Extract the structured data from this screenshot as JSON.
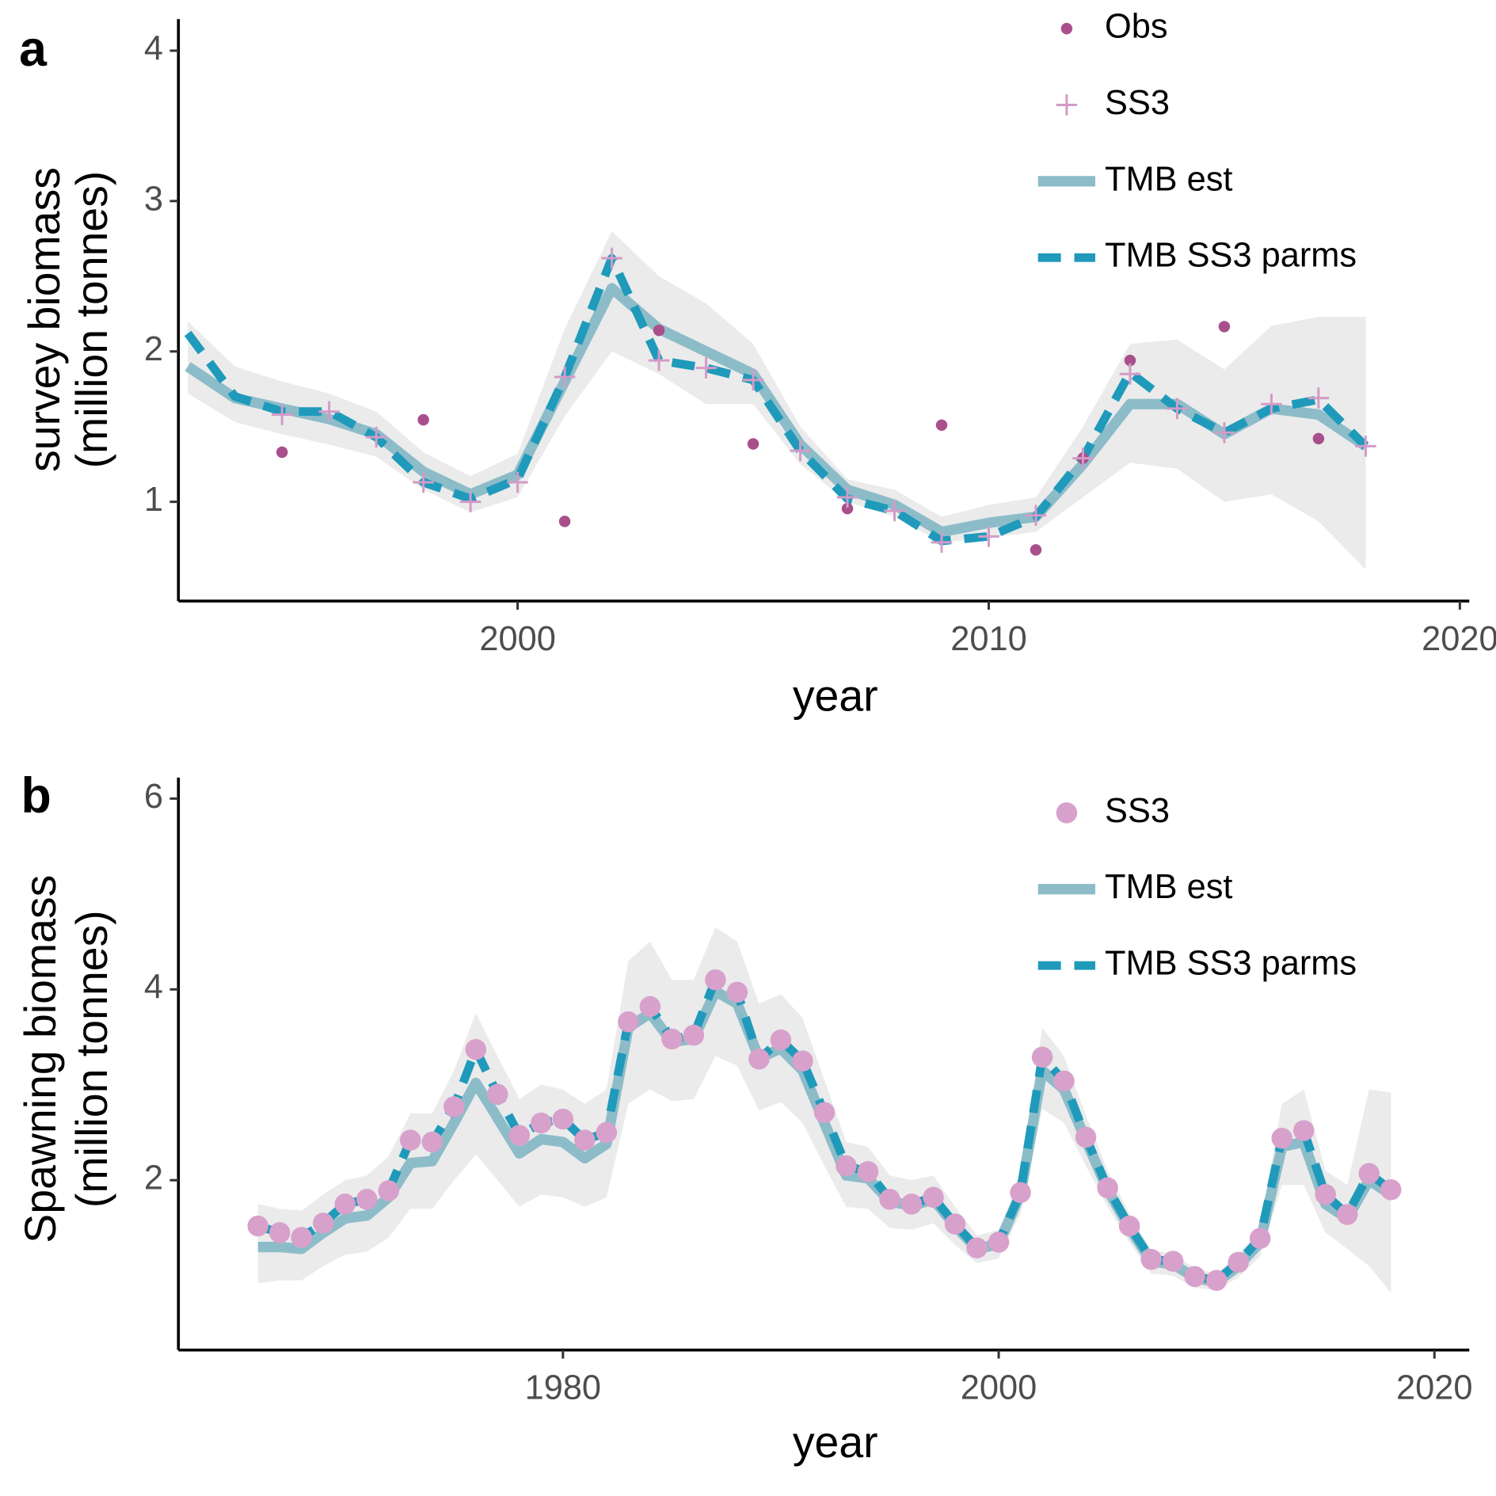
{
  "chart_data": [
    {
      "type": "line",
      "panel_label": "a",
      "x_label": "year",
      "y_label": [
        "survey biomass",
        "(million tonnes)"
      ],
      "xlim": [
        1992.8,
        2020.2
      ],
      "xticks": [
        2000,
        2010,
        2020
      ],
      "ylim": [
        0.34,
        4.21
      ],
      "yticks": [
        1,
        2,
        3,
        4
      ],
      "legend": "top-right",
      "band": {
        "color": "#ebebeb",
        "x": [
          1993,
          1994,
          1995,
          1996,
          1997,
          1998,
          1999,
          2000,
          2001,
          2002,
          2003,
          2004,
          2005,
          2006,
          2007,
          2008,
          2009,
          2010,
          2011,
          2012,
          2013,
          2014,
          2015,
          2016,
          2017,
          2018
        ],
        "lower": [
          1.72,
          1.53,
          1.45,
          1.38,
          1.3,
          1.08,
          0.93,
          1.03,
          1.57,
          2.0,
          1.85,
          1.65,
          1.65,
          1.25,
          1.0,
          0.9,
          0.73,
          0.76,
          0.8,
          1.03,
          1.26,
          1.22,
          1.0,
          1.05,
          0.87,
          0.55
        ],
        "upper": [
          2.2,
          1.9,
          1.8,
          1.72,
          1.6,
          1.33,
          1.17,
          1.32,
          2.15,
          2.8,
          2.5,
          2.32,
          2.05,
          1.5,
          1.15,
          1.08,
          0.9,
          0.98,
          1.03,
          1.5,
          2.05,
          2.08,
          1.88,
          2.17,
          2.23,
          2.23
        ]
      },
      "series": [
        {
          "name": "Obs",
          "style": "circle",
          "color": "#a94f8c",
          "x": [
            1995,
            1998,
            2001,
            2003,
            2005,
            2007,
            2009,
            2011,
            2012,
            2013,
            2015,
            2017
          ],
          "values": [
            1.33,
            1.545,
            0.87,
            2.14,
            1.385,
            0.955,
            1.51,
            0.68,
            1.29,
            1.94,
            2.165,
            1.42
          ]
        },
        {
          "name": "SS3",
          "style": "plus",
          "color": "#d39bc7",
          "x": [
            1995,
            1996,
            1997,
            1998,
            1999,
            2000,
            2001,
            2002,
            2003,
            2004,
            2005,
            2006,
            2007,
            2008,
            2009,
            2010,
            2011,
            2012,
            2013,
            2014,
            2015,
            2016,
            2017,
            2018
          ],
          "values": [
            1.58,
            1.6,
            1.43,
            1.13,
            1.0,
            1.13,
            1.83,
            2.62,
            1.94,
            1.89,
            1.81,
            1.34,
            1.03,
            0.94,
            0.73,
            0.77,
            0.91,
            1.29,
            1.85,
            1.62,
            1.46,
            1.65,
            1.69,
            1.37
          ]
        },
        {
          "name": "TMB est",
          "style": "solid",
          "color": "#8dbcc9",
          "x": [
            1993,
            1994,
            1995,
            1996,
            1997,
            1998,
            1999,
            2000,
            2001,
            2002,
            2003,
            2004,
            2005,
            2006,
            2007,
            2008,
            2009,
            2010,
            2011,
            2012,
            2013,
            2014,
            2015,
            2016,
            2017,
            2018
          ],
          "values": [
            1.9,
            1.69,
            1.62,
            1.55,
            1.45,
            1.2,
            1.05,
            1.18,
            1.8,
            2.42,
            2.15,
            2.0,
            1.85,
            1.38,
            1.08,
            0.98,
            0.8,
            0.86,
            0.9,
            1.25,
            1.65,
            1.65,
            1.45,
            1.62,
            1.58,
            1.37
          ]
        },
        {
          "name": "TMB SS3 parms",
          "style": "dashed",
          "color": "#1f9abb",
          "x": [
            1993,
            1994,
            1995,
            1996,
            1997,
            1998,
            1999,
            2000,
            2001,
            2002,
            2003,
            2004,
            2005,
            2006,
            2007,
            2008,
            2009,
            2010,
            2011,
            2012,
            2013,
            2014,
            2015,
            2016,
            2017,
            2018
          ],
          "values": [
            2.12,
            1.7,
            1.6,
            1.6,
            1.43,
            1.13,
            1.02,
            1.15,
            1.83,
            2.62,
            1.94,
            1.89,
            1.81,
            1.34,
            1.02,
            0.94,
            0.74,
            0.77,
            0.9,
            1.29,
            1.86,
            1.62,
            1.46,
            1.62,
            1.68,
            1.37
          ]
        }
      ]
    },
    {
      "type": "line",
      "panel_label": "b",
      "x_label": "year",
      "y_label": [
        "Spawning biomass",
        "(million tonnes)"
      ],
      "xlim": [
        1962.35,
        2021.6
      ],
      "xticks": [
        1980,
        2000,
        2020
      ],
      "ylim": [
        0.22,
        6.22
      ],
      "yticks": [
        2,
        4,
        6
      ],
      "legend": "top-right",
      "band": {
        "color": "#ebebeb",
        "x": [
          1966,
          1967,
          1968,
          1969,
          1970,
          1971,
          1972,
          1973,
          1974,
          1975,
          1976,
          1977,
          1978,
          1979,
          1980,
          1981,
          1982,
          1983,
          1984,
          1985,
          1986,
          1987,
          1988,
          1989,
          1990,
          1991,
          1992,
          1993,
          1994,
          1995,
          1996,
          1997,
          1998,
          1999,
          2000,
          2001,
          2002,
          2003,
          2004,
          2005,
          2006,
          2007,
          2008,
          2009,
          2010,
          2011,
          2012,
          2013,
          2014,
          2015,
          2016,
          2017,
          2018
        ],
        "lower": [
          0.92,
          0.95,
          0.95,
          1.1,
          1.22,
          1.25,
          1.4,
          1.7,
          1.7,
          2.0,
          2.27,
          2.0,
          1.72,
          1.85,
          1.82,
          1.72,
          1.82,
          2.8,
          2.95,
          2.83,
          2.85,
          3.3,
          3.2,
          2.73,
          2.82,
          2.6,
          2.15,
          1.72,
          1.7,
          1.5,
          1.48,
          1.55,
          1.32,
          1.13,
          1.18,
          1.65,
          2.75,
          2.6,
          2.15,
          1.72,
          1.35,
          1.02,
          1.0,
          0.87,
          0.85,
          0.98,
          1.2,
          1.95,
          1.95,
          1.45,
          1.28,
          1.1,
          0.82
        ],
        "upper": [
          1.75,
          1.7,
          1.68,
          1.85,
          2.0,
          2.05,
          2.25,
          2.7,
          2.7,
          3.15,
          3.75,
          3.3,
          2.85,
          3.0,
          2.95,
          2.8,
          2.95,
          4.3,
          4.5,
          4.1,
          4.1,
          4.65,
          4.5,
          3.85,
          3.95,
          3.7,
          3.05,
          2.4,
          2.35,
          2.05,
          2.0,
          2.05,
          1.72,
          1.42,
          1.48,
          2.05,
          3.6,
          3.3,
          2.68,
          2.1,
          1.65,
          1.27,
          1.23,
          1.08,
          1.02,
          1.22,
          1.5,
          2.8,
          2.95,
          2.1,
          1.95,
          2.95,
          2.92
        ]
      },
      "series": [
        {
          "name": "SS3",
          "style": "bigcircle",
          "color": "#d7a1cb",
          "x": [
            1966,
            1967,
            1968,
            1969,
            1970,
            1971,
            1972,
            1973,
            1974,
            1975,
            1976,
            1977,
            1978,
            1979,
            1980,
            1981,
            1982,
            1983,
            1984,
            1985,
            1986,
            1987,
            1988,
            1989,
            1990,
            1991,
            1992,
            1993,
            1994,
            1995,
            1996,
            1997,
            1998,
            1999,
            2000,
            2001,
            2002,
            2003,
            2004,
            2005,
            2006,
            2007,
            2008,
            2009,
            2010,
            2011,
            2012,
            2013,
            2014,
            2015,
            2016,
            2017,
            2018
          ],
          "values": [
            1.52,
            1.45,
            1.4,
            1.55,
            1.75,
            1.8,
            1.89,
            2.42,
            2.4,
            2.77,
            3.37,
            2.9,
            2.47,
            2.6,
            2.64,
            2.42,
            2.5,
            3.66,
            3.82,
            3.48,
            3.52,
            4.1,
            3.97,
            3.27,
            3.47,
            3.25,
            2.71,
            2.15,
            2.09,
            1.8,
            1.75,
            1.82,
            1.54,
            1.29,
            1.35,
            1.87,
            3.29,
            3.04,
            2.45,
            1.92,
            1.52,
            1.17,
            1.15,
            0.99,
            0.95,
            1.14,
            1.39,
            2.44,
            2.52,
            1.85,
            1.64,
            2.07,
            1.9
          ]
        },
        {
          "name": "TMB est",
          "style": "solid",
          "color": "#8dbcc9",
          "x": [
            1966,
            1967,
            1968,
            1969,
            1970,
            1971,
            1972,
            1973,
            1974,
            1975,
            1976,
            1977,
            1978,
            1979,
            1980,
            1981,
            1982,
            1983,
            1984,
            1985,
            1986,
            1987,
            1988,
            1989,
            1990,
            1991,
            1992,
            1993,
            1994,
            1995,
            1996,
            1997,
            1998,
            1999,
            2000,
            2001,
            2002,
            2003,
            2004,
            2005,
            2006,
            2007,
            2008,
            2009,
            2010,
            2011,
            2012,
            2013,
            2014,
            2015,
            2016,
            2017,
            2018
          ],
          "values": [
            1.3,
            1.3,
            1.28,
            1.45,
            1.6,
            1.63,
            1.82,
            2.18,
            2.2,
            2.6,
            3.02,
            2.65,
            2.28,
            2.43,
            2.4,
            2.23,
            2.38,
            3.6,
            3.75,
            3.45,
            3.48,
            3.98,
            3.85,
            3.28,
            3.38,
            3.15,
            2.6,
            2.05,
            2.02,
            1.78,
            1.73,
            1.8,
            1.52,
            1.28,
            1.33,
            1.85,
            3.15,
            2.95,
            2.42,
            1.9,
            1.5,
            1.15,
            1.12,
            0.98,
            0.93,
            1.1,
            1.35,
            2.35,
            2.4,
            1.75,
            1.6,
            2.0,
            1.85
          ]
        },
        {
          "name": "TMB SS3 parms",
          "style": "dashed",
          "color": "#1f9abb",
          "x": [
            1966,
            1967,
            1968,
            1969,
            1970,
            1971,
            1972,
            1973,
            1974,
            1975,
            1976,
            1977,
            1978,
            1979,
            1980,
            1981,
            1982,
            1983,
            1984,
            1985,
            1986,
            1987,
            1988,
            1989,
            1990,
            1991,
            1992,
            1993,
            1994,
            1995,
            1996,
            1997,
            1998,
            1999,
            2000,
            2001,
            2002,
            2003,
            2004,
            2005,
            2006,
            2007,
            2008,
            2009,
            2010,
            2011,
            2012,
            2013,
            2014,
            2015,
            2016,
            2017,
            2018
          ],
          "values": [
            1.52,
            1.45,
            1.4,
            1.55,
            1.75,
            1.8,
            1.89,
            2.42,
            2.4,
            2.77,
            3.37,
            2.9,
            2.47,
            2.6,
            2.64,
            2.42,
            2.5,
            3.66,
            3.82,
            3.48,
            3.52,
            4.1,
            3.97,
            3.27,
            3.47,
            3.25,
            2.71,
            2.15,
            2.09,
            1.8,
            1.75,
            1.82,
            1.54,
            1.29,
            1.35,
            1.87,
            3.29,
            3.04,
            2.45,
            1.92,
            1.52,
            1.17,
            1.15,
            0.99,
            0.95,
            1.14,
            1.39,
            2.44,
            2.52,
            1.85,
            1.64,
            2.07,
            1.9
          ]
        }
      ]
    }
  ]
}
